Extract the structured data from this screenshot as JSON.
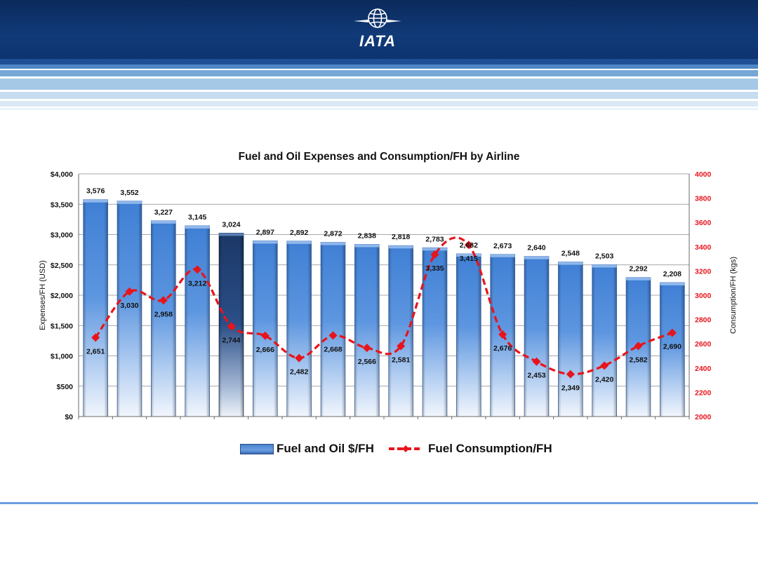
{
  "header": {
    "logo_text": "IATA"
  },
  "chart_data": {
    "type": "bar",
    "title": "Fuel and Oil Expenses and Consumption/FH by Airline",
    "ylabel": "Expenses/FH (USD)",
    "y2label": "Consumption/FH (kgs)",
    "ylim": [
      0,
      4000
    ],
    "y2lim": [
      2000,
      4000
    ],
    "y_ticks": [
      "$0",
      "$500",
      "$1,000",
      "$1,500",
      "$2,000",
      "$2,500",
      "$3,000",
      "$3,500",
      "$4,000"
    ],
    "y2_ticks": [
      "2000",
      "2200",
      "2400",
      "2600",
      "2800",
      "3000",
      "3200",
      "3400",
      "3600",
      "3800",
      "4000"
    ],
    "grid": true,
    "legend_position": "bottom",
    "highlighted_bar_index": 4,
    "series": [
      {
        "name": "Fuel and Oil $/FH",
        "type": "bar",
        "axis": "left",
        "color": "#4a86d6",
        "highlight_color": "#1e3c6e",
        "values": [
          3576,
          3552,
          3227,
          3145,
          3024,
          2897,
          2892,
          2872,
          2838,
          2818,
          2783,
          2682,
          2673,
          2640,
          2548,
          2503,
          2292,
          2208
        ],
        "labels": [
          "3,576",
          "3,552",
          "3,227",
          "3,145",
          "3,024",
          "2,897",
          "2,892",
          "2,872",
          "2,838",
          "2,818",
          "2,783",
          "2,682",
          "2,673",
          "2,640",
          "2,548",
          "2,503",
          "2,292",
          "2,208"
        ]
      },
      {
        "name": "Fuel Consumption/FH",
        "type": "line",
        "axis": "right",
        "color": "#e8141c",
        "style": "dashed",
        "values": [
          2651,
          3030,
          2958,
          3212,
          2744,
          2666,
          2482,
          2668,
          2566,
          2581,
          3335,
          3415,
          2676,
          2453,
          2349,
          2420,
          2582,
          2690
        ],
        "labels": [
          "2,651",
          "3,030",
          "2,958",
          "3,212",
          "2,744",
          "2,666",
          "2,482",
          "2,668",
          "2,566",
          "2,581",
          "3,335",
          "3,415",
          "2,676",
          "2,453",
          "2,349",
          "2,420",
          "2,582",
          "2,690"
        ]
      }
    ]
  }
}
